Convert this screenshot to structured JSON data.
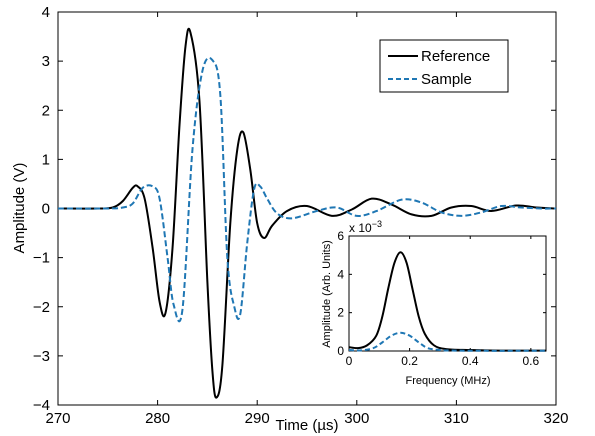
{
  "chart_data": [
    {
      "id": "main",
      "type": "line",
      "xlabel": "Time (µs)",
      "ylabel": "Amplitude (V)",
      "xlim": [
        270,
        320
      ],
      "ylim": [
        -4,
        4
      ],
      "xticks": [
        "270",
        "280",
        "290",
        "300",
        "310",
        "320"
      ],
      "yticks": [
        "−4",
        "−3",
        "−2",
        "−1",
        "0",
        "1",
        "2",
        "3",
        "4"
      ],
      "grid": false,
      "legend": "top-right",
      "series": [
        {
          "name": "Reference",
          "color": "#000000",
          "style": "solid",
          "x": [
            270,
            274,
            275.5,
            276.5,
            277.5,
            278,
            278.7,
            279.5,
            280.2,
            280.8,
            281.5,
            282.2,
            282.8,
            283.3,
            284.2,
            285,
            285.5,
            285.9,
            286.5,
            287.3,
            288,
            288.6,
            289.3,
            290,
            290.7,
            291.5,
            293,
            295,
            297.5,
            299.5,
            301.5,
            303.5,
            305.5,
            307.5,
            309.5,
            311.5,
            313.5,
            316,
            318,
            320
          ],
          "y": [
            0,
            0,
            0.02,
            0.15,
            0.42,
            0.45,
            0.2,
            -0.8,
            -1.9,
            -2.12,
            -0.8,
            1.7,
            3.3,
            3.58,
            2.2,
            -1.5,
            -3.3,
            -3.85,
            -3.2,
            -0.3,
            1.2,
            1.55,
            0.8,
            -0.3,
            -0.6,
            -0.35,
            -0.05,
            0.05,
            -0.15,
            -0.02,
            0.2,
            0.08,
            -0.12,
            -0.15,
            0.02,
            0.05,
            -0.05,
            0.06,
            0.02,
            0.0
          ]
        },
        {
          "name": "Sample",
          "color": "#1f77b4",
          "style": "dashed",
          "x": [
            270,
            275,
            276.5,
            277.5,
            278.5,
            279.5,
            280.2,
            281,
            281.6,
            282.5,
            283.5,
            284.5,
            285.5,
            286.3,
            287,
            287.7,
            288.3,
            289,
            289.7,
            290.3,
            291,
            292,
            293.5,
            296,
            298,
            300,
            302,
            304.5,
            306.5,
            308.5,
            310.5,
            312.5,
            314.5,
            316.5,
            318.5,
            320
          ],
          "y": [
            0,
            0,
            0.02,
            0.1,
            0.42,
            0.45,
            0.2,
            -1.0,
            -1.95,
            -2.05,
            1.2,
            2.8,
            3.02,
            2.3,
            -1.0,
            -2.0,
            -2.15,
            -0.7,
            0.4,
            0.45,
            0.2,
            -0.1,
            -0.2,
            -0.05,
            0.02,
            -0.15,
            -0.05,
            0.18,
            0.12,
            -0.08,
            -0.15,
            -0.08,
            0.05,
            0.02,
            0.0,
            0.0
          ]
        }
      ]
    },
    {
      "id": "inset",
      "type": "line",
      "xlabel": "Frequency (MHz)",
      "ylabel": "Amplitude (Arb. Units)",
      "xlim": [
        0,
        0.65
      ],
      "ylim": [
        0,
        6
      ],
      "xticks": [
        "0",
        "0.2",
        "0.4",
        "0.6"
      ],
      "yticks": [
        "0",
        "2",
        "4",
        "6"
      ],
      "yscale_note": "x 10",
      "yscale_exponent": "−3",
      "series": [
        {
          "name": "Reference",
          "color": "#000000",
          "style": "solid",
          "x": [
            0,
            0.03,
            0.06,
            0.09,
            0.11,
            0.13,
            0.15,
            0.17,
            0.19,
            0.21,
            0.23,
            0.25,
            0.28,
            0.32,
            0.4,
            0.5,
            0.6,
            0.65
          ],
          "y": [
            0.2,
            0.15,
            0.3,
            0.8,
            1.8,
            3.3,
            4.6,
            5.15,
            4.6,
            3.2,
            1.8,
            0.9,
            0.3,
            0.1,
            0.05,
            0.02,
            0.02,
            0.02
          ]
        },
        {
          "name": "Sample",
          "color": "#1f77b4",
          "style": "dashed",
          "x": [
            0,
            0.04,
            0.08,
            0.11,
            0.14,
            0.17,
            0.2,
            0.23,
            0.26,
            0.3,
            0.35,
            0.45,
            0.55,
            0.65
          ],
          "y": [
            0.05,
            0.03,
            0.15,
            0.45,
            0.8,
            0.95,
            0.8,
            0.45,
            0.15,
            0.05,
            0.02,
            0.01,
            0.01,
            0.01
          ]
        }
      ]
    }
  ]
}
